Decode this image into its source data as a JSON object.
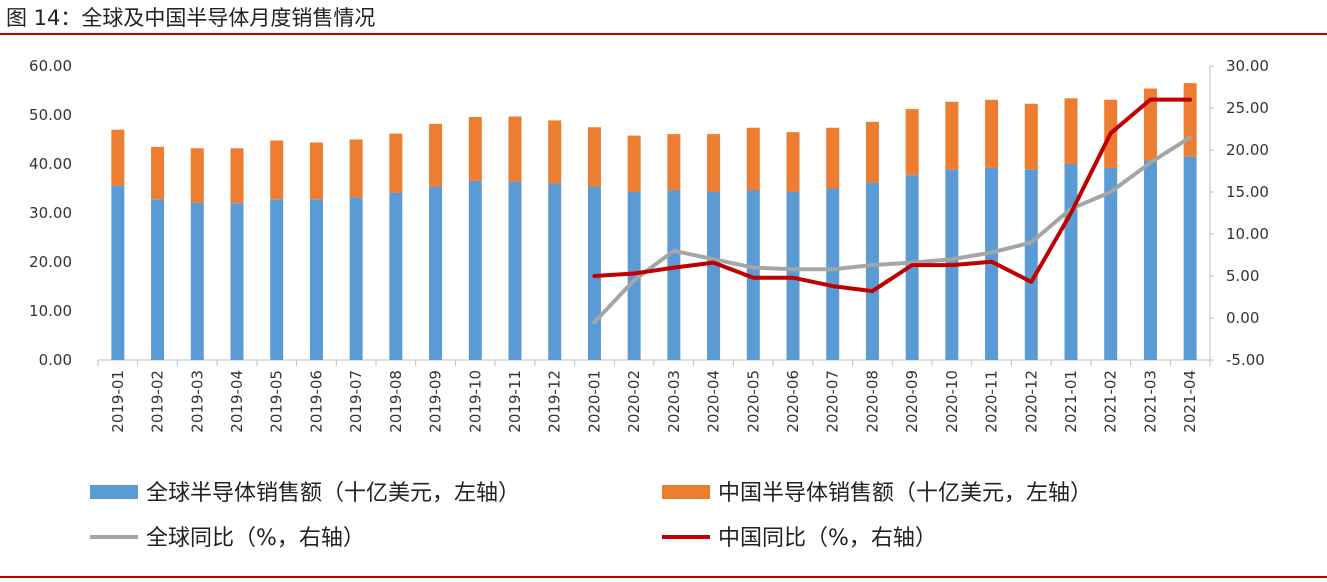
{
  "title": "图 14：全球及中国半导体月度销售情况",
  "colors": {
    "global_sales": "#5b9bd5",
    "china_sales": "#ed7d31",
    "global_yoy": "#a5a5a5",
    "china_yoy": "#c00000",
    "rule": "#c00000"
  },
  "chart_data": {
    "type": "bar",
    "stacked": true,
    "categories": [
      "2019-01",
      "2019-02",
      "2019-03",
      "2019-04",
      "2019-05",
      "2019-06",
      "2019-07",
      "2019-08",
      "2019-09",
      "2019-10",
      "2019-11",
      "2019-12",
      "2020-01",
      "2020-02",
      "2020-03",
      "2020-04",
      "2020-05",
      "2020-06",
      "2020-07",
      "2020-08",
      "2020-09",
      "2020-10",
      "2020-11",
      "2020-12",
      "2021-01",
      "2021-02",
      "2021-03",
      "2021-04"
    ],
    "left_axis": {
      "ylim": [
        0,
        60
      ],
      "ticks": [
        "0.00",
        "10.00",
        "20.00",
        "30.00",
        "40.00",
        "50.00",
        "60.00"
      ]
    },
    "right_axis": {
      "ylim": [
        -5,
        30
      ],
      "ticks": [
        "-5.00",
        "0.00",
        "5.00",
        "10.00",
        "15.00",
        "20.00",
        "25.00",
        "30.00"
      ]
    },
    "grid": false,
    "legend_position": "bottom",
    "series": [
      {
        "name": "全球半导体销售额（十亿美元，左轴）",
        "type": "bar",
        "axis": "left",
        "values": [
          35.5,
          32.8,
          32.1,
          32.0,
          32.8,
          32.8,
          33.2,
          34.1,
          35.4,
          36.6,
          36.4,
          36.0,
          35.4,
          34.3,
          34.6,
          34.3,
          34.6,
          34.3,
          35.0,
          36.2,
          37.7,
          38.8,
          39.2,
          38.8,
          40.0,
          39.2,
          40.8,
          41.5
        ]
      },
      {
        "name": "中国半导体销售额（十亿美元，左轴）",
        "type": "bar",
        "axis": "left",
        "values": [
          11.5,
          10.7,
          11.1,
          11.2,
          12.0,
          11.6,
          11.8,
          12.1,
          12.8,
          13.0,
          13.3,
          12.9,
          12.1,
          11.5,
          11.5,
          11.8,
          12.8,
          12.2,
          12.4,
          12.4,
          13.5,
          13.9,
          13.9,
          13.5,
          13.4,
          13.9,
          14.6,
          15.0
        ]
      },
      {
        "name": "全球同比（%，右轴）",
        "type": "line",
        "axis": "right",
        "values": [
          null,
          null,
          null,
          null,
          null,
          null,
          null,
          null,
          null,
          null,
          null,
          null,
          -0.5,
          4.5,
          8.0,
          7.0,
          6.0,
          5.8,
          5.8,
          6.3,
          6.6,
          7.0,
          7.8,
          9.0,
          13.0,
          15.0,
          18.5,
          21.5
        ]
      },
      {
        "name": "中国同比（%，右轴）",
        "type": "line",
        "axis": "right",
        "values": [
          null,
          null,
          null,
          null,
          null,
          null,
          null,
          null,
          null,
          null,
          null,
          null,
          5.0,
          5.3,
          6.0,
          6.6,
          4.8,
          4.8,
          3.8,
          3.2,
          6.3,
          6.3,
          6.7,
          4.3,
          12.5,
          22.0,
          26.0,
          26.0
        ]
      }
    ]
  }
}
